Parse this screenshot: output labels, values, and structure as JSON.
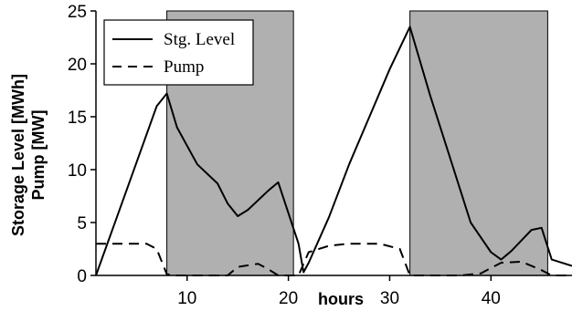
{
  "chart_data": {
    "type": "line",
    "xlabel": "hours",
    "ylabel": [
      "Storage Level [MWh]",
      "Pump [MW]"
    ],
    "xlim": [
      1,
      48
    ],
    "ylim": [
      0,
      25
    ],
    "x_ticks": [
      10,
      20,
      30,
      40
    ],
    "y_ticks": [
      0,
      5,
      10,
      15,
      20,
      25
    ],
    "shaded_intervals": [
      [
        8,
        20.5
      ],
      [
        32,
        45.6
      ]
    ],
    "shade_color": "#b0b0b0",
    "legend": {
      "placement": "top-left",
      "entries": [
        "Stg. Level",
        "Pump"
      ]
    },
    "series": [
      {
        "name": "Stg. Level",
        "style": "solid",
        "x": [
          1,
          4,
          7,
          8,
          9,
          11,
          13,
          14,
          15,
          16,
          18,
          19,
          21,
          21.5,
          22,
          24,
          26,
          28,
          30,
          32,
          34,
          36,
          38,
          40,
          41,
          42,
          44,
          45,
          46,
          48
        ],
        "y": [
          0,
          8,
          16,
          17.2,
          14,
          10.5,
          8.7,
          6.8,
          5.6,
          6.2,
          8,
          8.8,
          3,
          0.3,
          1.2,
          5.5,
          10.5,
          15,
          19.5,
          23.5,
          17,
          11,
          5,
          2.2,
          1.5,
          2.3,
          4.3,
          4.5,
          1.5,
          0.9
        ]
      },
      {
        "name": "Pump",
        "style": "dashed",
        "x": [
          1,
          6,
          7,
          8,
          9,
          12,
          14,
          15,
          17,
          18,
          19,
          21,
          22,
          24,
          26,
          29,
          31,
          32,
          34,
          37,
          39,
          41,
          43,
          45,
          46,
          48
        ],
        "y": [
          3,
          3,
          2.5,
          0.1,
          0,
          0,
          0,
          0.8,
          1.1,
          0.6,
          0,
          0,
          2.2,
          2.8,
          3,
          3,
          2.5,
          0,
          0,
          0,
          0.2,
          1.2,
          1.3,
          0.5,
          0,
          0
        ]
      }
    ]
  }
}
